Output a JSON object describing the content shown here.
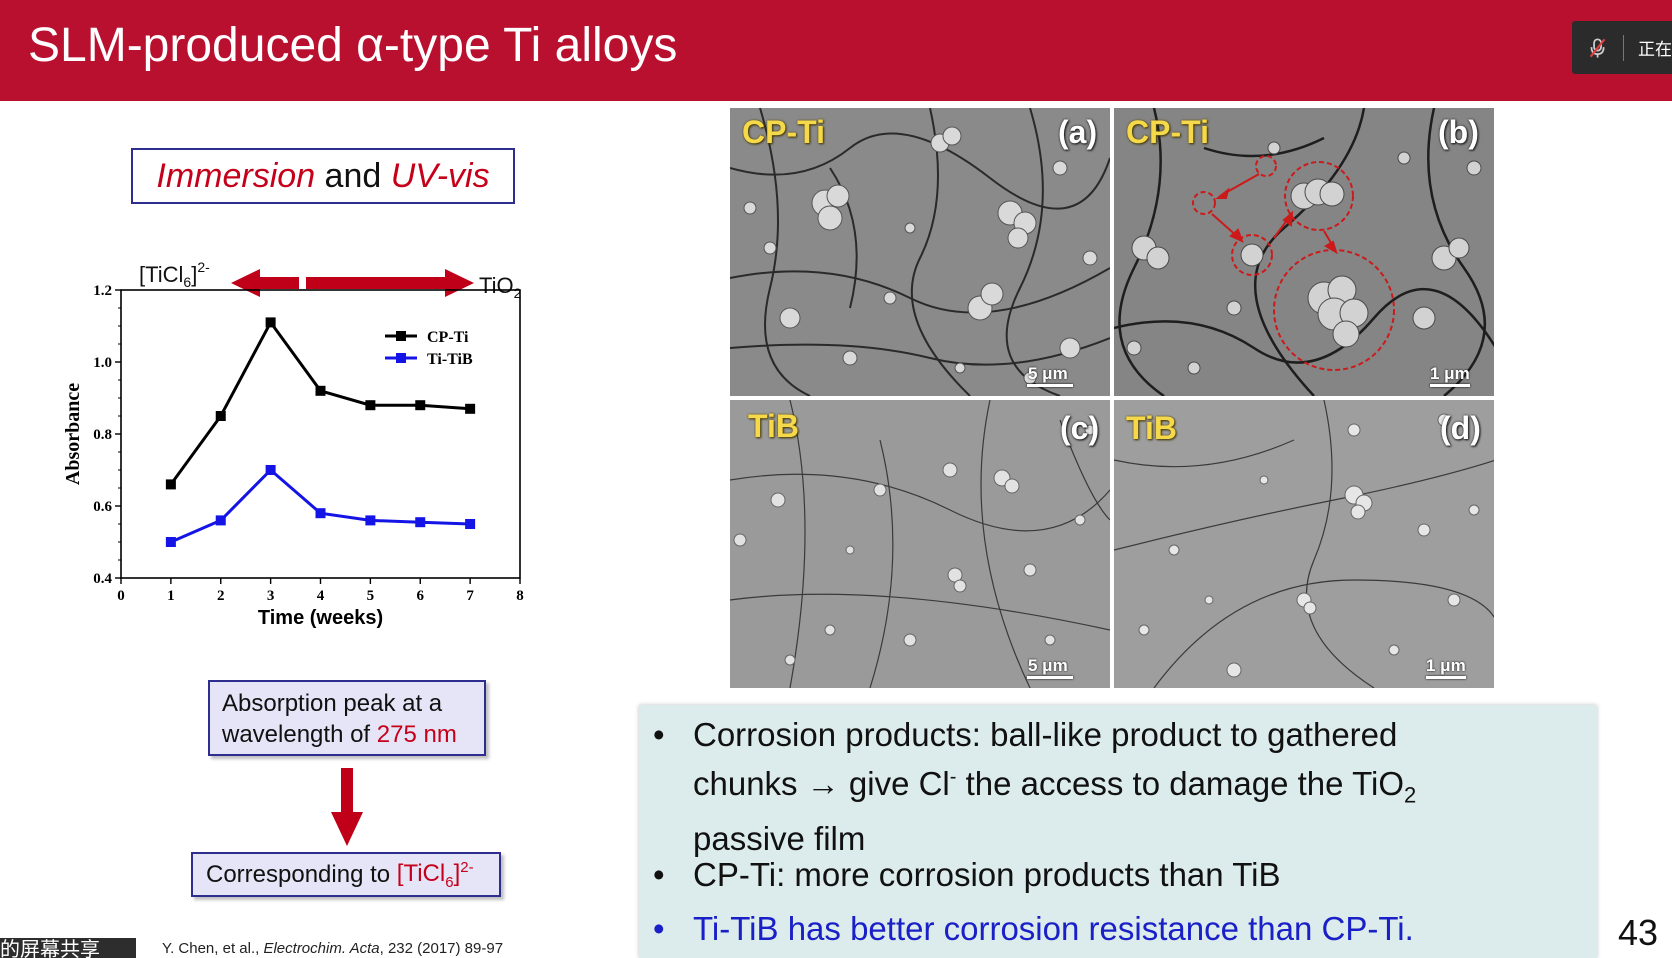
{
  "slide": {
    "title": "SLM-produced α-type Ti alloys",
    "page_number": "43",
    "citation_authors": "Y. Chen, et al., ",
    "citation_journal": "Electrochim. Acta",
    "citation_rest": ", 232 (2017) 89-97",
    "share_tag": "的屏幕共享"
  },
  "meeting_badge": {
    "text": "正在",
    "icon": "mic-off-icon"
  },
  "left": {
    "method_word1": "Immersion",
    "method_and": " and ",
    "method_word2": "UV-vis",
    "arrow_left_label_base": "[TiCl",
    "arrow_left_label_sub": "6",
    "arrow_left_label_end": "]",
    "arrow_left_label_sup": "2-",
    "arrow_right_label_base": "TiO",
    "arrow_right_label_sub": "2",
    "note1_line1": "Absorption peak at a",
    "note1_line2a": "wavelength of ",
    "note1_line2b": "275 nm",
    "note2_text": "Corresponding to ",
    "note2_red_base": "[TiCl",
    "note2_red_sub": "6",
    "note2_red_end": "]",
    "note2_red_sup": "2-"
  },
  "chart_data": {
    "type": "line",
    "xlabel": "Time (weeks)",
    "ylabel": "Absorbance",
    "xlim": [
      0,
      8
    ],
    "ylim": [
      0.4,
      1.2
    ],
    "x_ticks": [
      "0",
      "1",
      "2",
      "3",
      "4",
      "5",
      "6",
      "7",
      "8"
    ],
    "y_ticks": [
      "0.4",
      "0.6",
      "0.8",
      "1.0",
      "1.2"
    ],
    "legend_position": "top-right",
    "series": [
      {
        "name": "CP-Ti",
        "color": "#000000",
        "x": [
          1,
          2,
          3,
          4,
          5,
          6,
          7
        ],
        "y": [
          0.66,
          0.85,
          1.11,
          0.92,
          0.88,
          0.88,
          0.87
        ]
      },
      {
        "name": "Ti-TiB",
        "color": "#1414e6",
        "x": [
          1,
          2,
          3,
          4,
          5,
          6,
          7
        ],
        "y": [
          0.5,
          0.56,
          0.7,
          0.58,
          0.56,
          0.555,
          0.55
        ]
      }
    ]
  },
  "sem": {
    "panels": [
      {
        "label": "CP-Ti",
        "letter": "(a)",
        "scale": "5 μm"
      },
      {
        "label": "CP-Ti",
        "letter": "(b)",
        "scale": "1 μm"
      },
      {
        "label": "TiB",
        "letter": "(c)",
        "scale": "5 μm"
      },
      {
        "label": "TiB",
        "letter": "(d)",
        "scale": "1 μm"
      }
    ]
  },
  "summary": {
    "b1_line1": "Corrosion products: ball-like product to gathered",
    "b1_line2a": "chunks → give Cl",
    "b1_line2_sup": "-",
    "b1_line2b": " the access to damage the TiO",
    "b1_line2_sub": "2",
    "b1_line3": "passive film",
    "b2": "CP-Ti: more corrosion products than TiB",
    "b3": "Ti-TiB has better corrosion resistance than CP-Ti.",
    "bullet_char": "•"
  },
  "colors": {
    "title_bar": "#b9102f",
    "accent_red": "#c5001a",
    "accent_blue": "#1a20c8",
    "summary_bg": "#dcebeb"
  }
}
